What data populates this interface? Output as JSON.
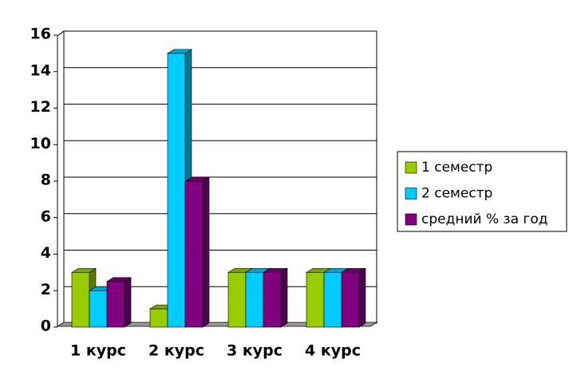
{
  "chart_data": {
    "type": "bar3d",
    "categories": [
      "1 курс",
      "2 курс",
      "3 курс",
      "4 курс"
    ],
    "series": [
      {
        "name": "1 семестр",
        "color": "#99cc00",
        "values": [
          3,
          1,
          3,
          3
        ]
      },
      {
        "name": "2 семестр",
        "color": "#00ccff",
        "values": [
          2,
          15,
          3,
          3
        ]
      },
      {
        "name": "средний % за год",
        "color": "#800080",
        "values": [
          2.5,
          8,
          3,
          3
        ]
      }
    ],
    "ylim": [
      0,
      16
    ],
    "yticks": [
      0,
      2,
      4,
      6,
      8,
      10,
      12,
      14,
      16
    ],
    "grid": true,
    "legend": "right"
  }
}
